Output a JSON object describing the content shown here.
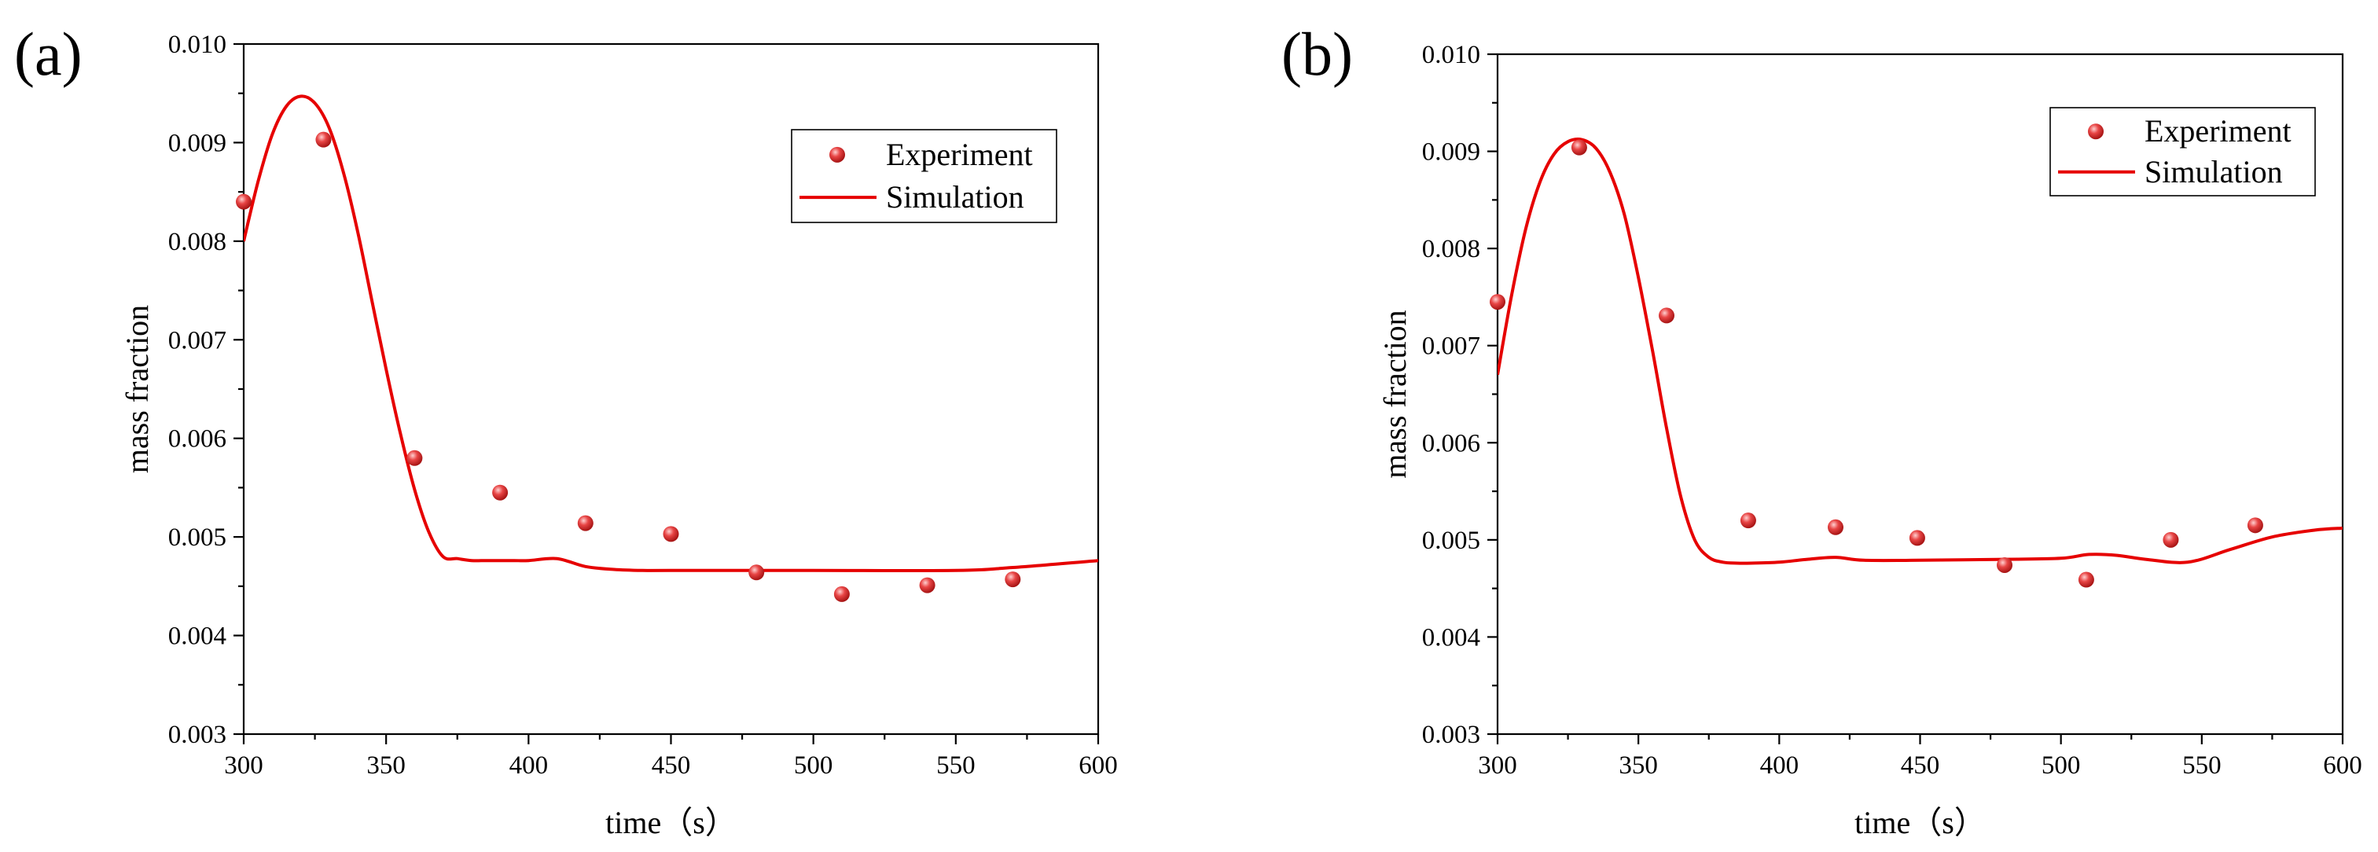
{
  "chart_data": [
    {
      "type": "scatter",
      "panel_label": "(a)",
      "title": "",
      "xlabel": "time（s）",
      "ylabel": "mass fraction",
      "xlim": [
        300,
        600
      ],
      "ylim": [
        0.003,
        0.01
      ],
      "xticks": [
        300,
        350,
        400,
        450,
        500,
        550,
        600
      ],
      "xtick_labels": [
        "300",
        "350",
        "400",
        "450",
        "500",
        "550",
        "600"
      ],
      "yticks": [
        0.003,
        0.004,
        0.005,
        0.006,
        0.007,
        0.008,
        0.009,
        0.01
      ],
      "ytick_labels": [
        "0.003",
        "0.004",
        "0.005",
        "0.006",
        "0.007",
        "0.008",
        "0.009",
        "0.010"
      ],
      "grid": false,
      "legend_position": "top-right",
      "series": [
        {
          "name": "Experiment",
          "kind": "scatter",
          "color": "#e84545",
          "x": [
            300,
            328,
            360,
            390,
            420,
            450,
            480,
            510,
            540,
            570
          ],
          "y": [
            0.0084,
            0.00903,
            0.0058,
            0.00545,
            0.00514,
            0.00503,
            0.00464,
            0.00442,
            0.00451,
            0.00457
          ]
        },
        {
          "name": "Simulation",
          "kind": "line",
          "color": "#e60000",
          "x": [
            300,
            305,
            310,
            315,
            320,
            325,
            330,
            335,
            340,
            345,
            350,
            355,
            360,
            365,
            370,
            375,
            380,
            385,
            390,
            395,
            400,
            410,
            420,
            430,
            440,
            450,
            500,
            550,
            570,
            600
          ],
          "y": [
            0.008,
            0.0086,
            0.00908,
            0.00937,
            0.00947,
            0.0094,
            0.00915,
            0.0087,
            0.0081,
            0.0074,
            0.0067,
            0.00605,
            0.00548,
            0.00505,
            0.0048,
            0.00478,
            0.00476,
            0.00476,
            0.00476,
            0.00476,
            0.00476,
            0.00478,
            0.0047,
            0.00467,
            0.00466,
            0.00466,
            0.00466,
            0.00466,
            0.00469,
            0.00476
          ]
        }
      ]
    },
    {
      "type": "scatter",
      "panel_label": "(b)",
      "title": "",
      "xlabel": "time（s）",
      "ylabel": "mass fraction",
      "xlim": [
        300,
        600
      ],
      "ylim": [
        0.003,
        0.01
      ],
      "xticks": [
        300,
        350,
        400,
        450,
        500,
        550,
        600
      ],
      "xtick_labels": [
        "300",
        "350",
        "400",
        "450",
        "500",
        "550",
        "600"
      ],
      "yticks": [
        0.003,
        0.004,
        0.005,
        0.006,
        0.007,
        0.008,
        0.009,
        0.01
      ],
      "ytick_labels": [
        "0.003",
        "0.004",
        "0.005",
        "0.006",
        "0.007",
        "0.008",
        "0.009",
        "0.010"
      ],
      "grid": false,
      "legend_position": "top-right",
      "series": [
        {
          "name": "Experiment",
          "kind": "scatter",
          "color": "#e84545",
          "x": [
            300,
            329,
            360,
            389,
            420,
            449,
            480,
            509,
            539,
            569
          ],
          "y": [
            0.00745,
            0.00904,
            0.00731,
            0.0052,
            0.00513,
            0.00502,
            0.00474,
            0.00459,
            0.005,
            0.00515
          ]
        },
        {
          "name": "Simulation",
          "kind": "line",
          "color": "#e60000",
          "x": [
            300,
            305,
            310,
            315,
            320,
            325,
            330,
            335,
            340,
            345,
            350,
            355,
            360,
            365,
            370,
            375,
            380,
            385,
            390,
            400,
            410,
            420,
            430,
            450,
            480,
            500,
            510,
            520,
            530,
            545,
            560,
            575,
            590,
            600
          ],
          "y": [
            0.0067,
            0.00752,
            0.0082,
            0.00868,
            0.00897,
            0.0091,
            0.00912,
            0.00903,
            0.00878,
            0.00835,
            0.0077,
            0.00695,
            0.00615,
            0.00545,
            0.005,
            0.00482,
            0.00477,
            0.00476,
            0.00476,
            0.00477,
            0.0048,
            0.00482,
            0.00479,
            0.00479,
            0.0048,
            0.00481,
            0.00485,
            0.00484,
            0.0048,
            0.00477,
            0.0049,
            0.00503,
            0.0051,
            0.00512
          ]
        }
      ]
    }
  ]
}
